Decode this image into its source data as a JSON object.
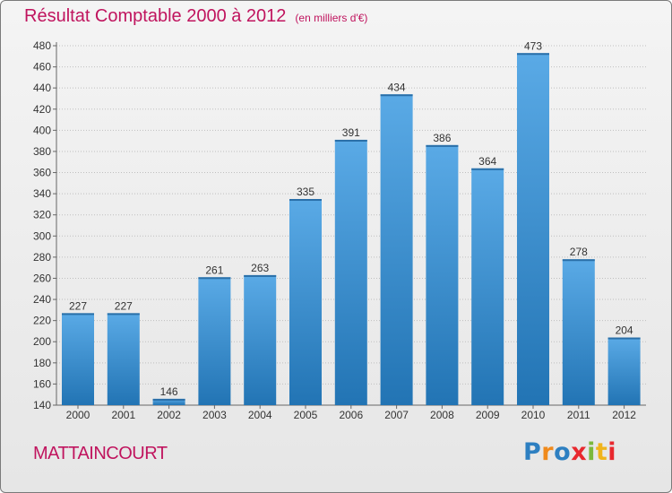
{
  "title": "Résultat Comptable 2000 à 2012",
  "subtitle": "(en milliers d'€)",
  "commune": "MATTAINCOURT",
  "logo": {
    "letters": [
      "P",
      "r",
      "o",
      "x",
      "i",
      "t",
      "i"
    ],
    "colors": [
      "#2d7fc1",
      "#f08a1c",
      "#2d7fc1",
      "#e8282e",
      "#7bb83c",
      "#f0b41c",
      "#e8282e"
    ]
  },
  "colors": {
    "bar_top": "#5aaae6",
    "bar_bottom": "#2274b4",
    "title": "#c0145e",
    "grid": "#bfbfbf"
  },
  "chart_data": {
    "type": "bar",
    "title": "Résultat Comptable 2000 à 2012",
    "subtitle": "(en milliers d'€)",
    "categories": [
      "2000",
      "2001",
      "2002",
      "2003",
      "2004",
      "2005",
      "2006",
      "2007",
      "2008",
      "2009",
      "2010",
      "2011",
      "2012"
    ],
    "values": [
      227,
      227,
      146,
      261,
      263,
      335,
      391,
      434,
      386,
      364,
      473,
      278,
      204
    ],
    "yticks": [
      140,
      160,
      180,
      200,
      220,
      240,
      260,
      280,
      300,
      320,
      340,
      360,
      380,
      400,
      420,
      440,
      460,
      480
    ],
    "ylim": [
      140,
      480
    ],
    "xlabel": "",
    "ylabel": "",
    "grid": true
  }
}
